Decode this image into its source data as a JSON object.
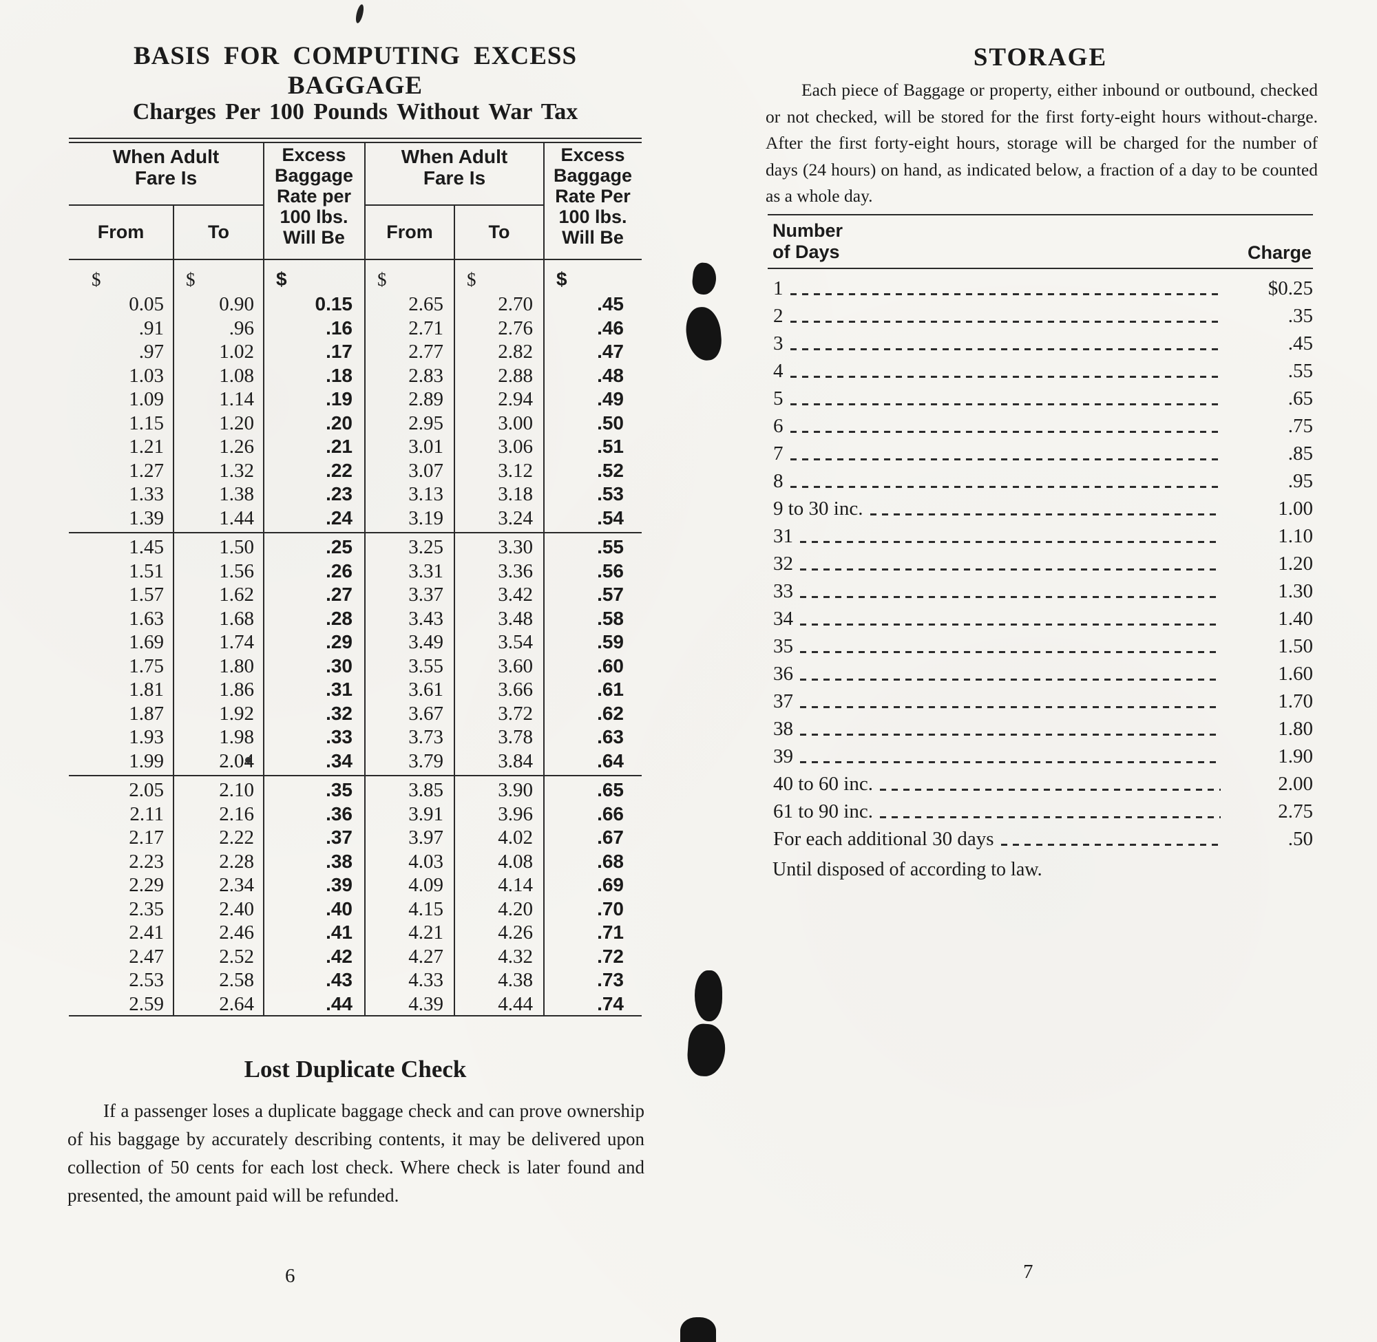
{
  "colors": {
    "paper": "#f6f5f1",
    "ink": "#1b1b1b"
  },
  "left_page": {
    "title": "BASIS FOR COMPUTING EXCESS BAGGAGE",
    "subtitle": "Charges Per 100 Pounds Without War Tax",
    "page_number": "6",
    "table": {
      "currency_symbol": "$",
      "headers": {
        "fare_group_left": "When Adult\nFare Is",
        "fare_group_right": "When Adult\nFare Is",
        "from_left": "From",
        "to_left": "To",
        "from_right": "From",
        "to_right": "To",
        "rate_left": "Excess\nBaggage\nRate per\n100 lbs.\nWill Be",
        "rate_right": "Excess\nBaggage\nRate Per\n100 lbs.\nWill Be"
      },
      "sections": [
        [
          [
            "0.05",
            "0.90",
            "0.15",
            "2.65",
            "2.70",
            ".45"
          ],
          [
            ".91",
            ".96",
            ".16",
            "2.71",
            "2.76",
            ".46"
          ],
          [
            ".97",
            "1.02",
            ".17",
            "2.77",
            "2.82",
            ".47"
          ],
          [
            "1.03",
            "1.08",
            ".18",
            "2.83",
            "2.88",
            ".48"
          ],
          [
            "1.09",
            "1.14",
            ".19",
            "2.89",
            "2.94",
            ".49"
          ],
          [
            "1.15",
            "1.20",
            ".20",
            "2.95",
            "3.00",
            ".50"
          ],
          [
            "1.21",
            "1.26",
            ".21",
            "3.01",
            "3.06",
            ".51"
          ],
          [
            "1.27",
            "1.32",
            ".22",
            "3.07",
            "3.12",
            ".52"
          ],
          [
            "1.33",
            "1.38",
            ".23",
            "3.13",
            "3.18",
            ".53"
          ],
          [
            "1.39",
            "1.44",
            ".24",
            "3.19",
            "3.24",
            ".54"
          ]
        ],
        [
          [
            "1.45",
            "1.50",
            ".25",
            "3.25",
            "3.30",
            ".55"
          ],
          [
            "1.51",
            "1.56",
            ".26",
            "3.31",
            "3.36",
            ".56"
          ],
          [
            "1.57",
            "1.62",
            ".27",
            "3.37",
            "3.42",
            ".57"
          ],
          [
            "1.63",
            "1.68",
            ".28",
            "3.43",
            "3.48",
            ".58"
          ],
          [
            "1.69",
            "1.74",
            ".29",
            "3.49",
            "3.54",
            ".59"
          ],
          [
            "1.75",
            "1.80",
            ".30",
            "3.55",
            "3.60",
            ".60"
          ],
          [
            "1.81",
            "1.86",
            ".31",
            "3.61",
            "3.66",
            ".61"
          ],
          [
            "1.87",
            "1.92",
            ".32",
            "3.67",
            "3.72",
            ".62"
          ],
          [
            "1.93",
            "1.98",
            ".33",
            "3.73",
            "3.78",
            ".63"
          ],
          [
            "1.99",
            "2.04",
            ".34",
            "3.79",
            "3.84",
            ".64"
          ]
        ],
        [
          [
            "2.05",
            "2.10",
            ".35",
            "3.85",
            "3.90",
            ".65"
          ],
          [
            "2.11",
            "2.16",
            ".36",
            "3.91",
            "3.96",
            ".66"
          ],
          [
            "2.17",
            "2.22",
            ".37",
            "3.97",
            "4.02",
            ".67"
          ],
          [
            "2.23",
            "2.28",
            ".38",
            "4.03",
            "4.08",
            ".68"
          ],
          [
            "2.29",
            "2.34",
            ".39",
            "4.09",
            "4.14",
            ".69"
          ],
          [
            "2.35",
            "2.40",
            ".40",
            "4.15",
            "4.20",
            ".70"
          ],
          [
            "2.41",
            "2.46",
            ".41",
            "4.21",
            "4.26",
            ".71"
          ],
          [
            "2.47",
            "2.52",
            ".42",
            "4.27",
            "4.32",
            ".72"
          ],
          [
            "2.53",
            "2.58",
            ".43",
            "4.33",
            "4.38",
            ".73"
          ],
          [
            "2.59",
            "2.64",
            ".44",
            "4.39",
            "4.44",
            ".74"
          ]
        ]
      ]
    },
    "lost_check": {
      "heading": "Lost Duplicate Check",
      "body": "If a passenger loses a duplicate baggage check and can prove ownership of his baggage by accurately describing contents, it may be delivered upon collection of 50 cents for each lost check.  Where check is later found and presented, the amount paid will be refunded."
    }
  },
  "right_page": {
    "title": "STORAGE",
    "intro": "Each piece of Baggage or property, either inbound or outbound, checked or not checked, will be stored for the first forty-eight hours without-charge.  After the first forty-eight hours, storage will be charged for the number of days (24 hours) on hand, as indicated below, a fraction of a day to be counted as a whole day.",
    "page_number": "7",
    "table": {
      "col1_header": "Number\nof Days",
      "col2_header": "Charge",
      "rows": [
        [
          "1",
          "$0.25"
        ],
        [
          "2",
          ".35"
        ],
        [
          "3",
          ".45"
        ],
        [
          "4",
          ".55"
        ],
        [
          "5",
          ".65"
        ],
        [
          "6",
          ".75"
        ],
        [
          "7",
          ".85"
        ],
        [
          "8",
          ".95"
        ],
        [
          "9 to 30 inc.",
          "1.00"
        ],
        [
          "31",
          "1.10"
        ],
        [
          "32",
          "1.20"
        ],
        [
          "33",
          "1.30"
        ],
        [
          "34",
          "1.40"
        ],
        [
          "35",
          "1.50"
        ],
        [
          "36",
          "1.60"
        ],
        [
          "37",
          "1.70"
        ],
        [
          "38",
          "1.80"
        ],
        [
          "39",
          "1.90"
        ],
        [
          "40 to 60 inc.",
          "2.00"
        ],
        [
          "61 to 90 inc.",
          "2.75"
        ],
        [
          "For each additional 30 days",
          ".50"
        ]
      ]
    },
    "footnote": "Until disposed of according to law."
  }
}
